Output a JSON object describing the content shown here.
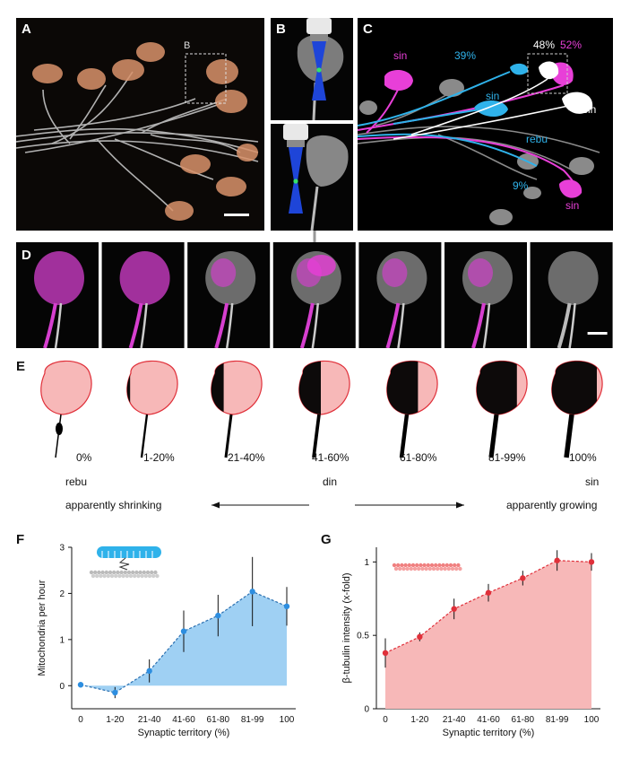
{
  "panels": {
    "A": {
      "letter": "A",
      "inset_label": "B"
    },
    "B": {
      "letter": "B"
    },
    "C": {
      "letter": "C",
      "labels": [
        "sin",
        "39%",
        "48%",
        "52%",
        "sin",
        "sin",
        "rebu",
        "9%",
        "sin"
      ]
    },
    "D": {
      "letter": "D"
    },
    "E": {
      "letter": "E",
      "percent_labels": [
        "0%",
        "1-20%",
        "21-40%",
        "41-60%",
        "61-80%",
        "81-99%",
        "100%"
      ],
      "left_word": "rebu",
      "center_word": "din",
      "right_word": "sin",
      "left_caption": "apparently shrinking",
      "right_caption": "apparently growing"
    },
    "F": {
      "letter": "F"
    },
    "G": {
      "letter": "G"
    }
  },
  "colors": {
    "magenta": "#e83fd8",
    "cyan": "#2fb2ea",
    "pink_fill": "#f7b8b8",
    "red_line": "#e0303a",
    "blue_fill": "#9fd0f3",
    "blue_point": "#2d8ee0",
    "red_point": "#e0303a"
  },
  "chart_data": [
    {
      "id": "F",
      "type": "area",
      "categories": [
        "0",
        "1-20",
        "21-40",
        "41-60",
        "61-80",
        "81-99",
        "100"
      ],
      "values": [
        0.02,
        -0.15,
        0.32,
        1.18,
        1.52,
        2.04,
        1.72
      ],
      "errors": [
        0.0,
        0.12,
        0.25,
        0.45,
        0.45,
        0.75,
        0.42
      ],
      "ylim": [
        -0.5,
        3
      ],
      "yticks": [
        "0",
        "1",
        "2",
        "3"
      ],
      "xlabel": "Synaptic territory (%)",
      "ylabel": "Mitochondria per hour"
    },
    {
      "id": "G",
      "type": "area",
      "categories": [
        "0",
        "1-20",
        "21-40",
        "41-60",
        "61-80",
        "81-99",
        "100"
      ],
      "values": [
        0.38,
        0.49,
        0.68,
        0.79,
        0.89,
        1.01,
        1.0
      ],
      "errors": [
        0.1,
        0.03,
        0.07,
        0.06,
        0.05,
        0.07,
        0.06
      ],
      "ylim": [
        0,
        1.1
      ],
      "yticks": [
        "0",
        "0.5",
        "1"
      ],
      "xlabel": "Synaptic territory (%)",
      "ylabel": "β-tubulin intensity (x-fold)"
    }
  ]
}
